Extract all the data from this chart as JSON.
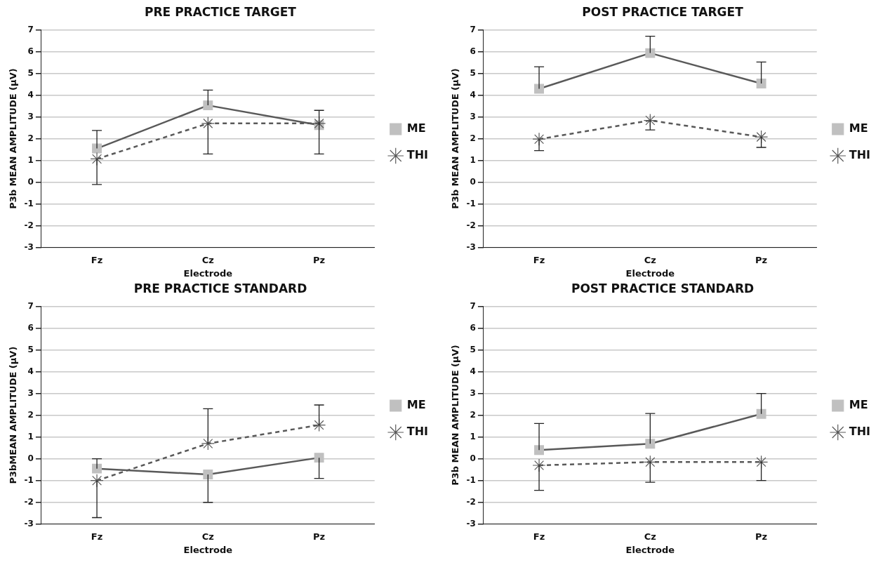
{
  "chart_data": [
    {
      "type": "line",
      "title": "PRE PRACTICE TARGET",
      "xlabel": "Electrode",
      "ylabel": "P3b MEAN AMPLITUDE (µV)",
      "categories": [
        "Fz",
        "Cz",
        "Pz"
      ],
      "ylim": [
        -3,
        7
      ],
      "yticks": [
        -3,
        -2,
        -1,
        0,
        1,
        2,
        3,
        4,
        5,
        6,
        7
      ],
      "grid": "y",
      "legend": "right",
      "series": [
        {
          "name": "ME",
          "color": "#595959",
          "marker": "square",
          "line_style": "solid",
          "values": [
            1.55,
            3.53,
            2.62
          ],
          "errors": [
            [
              1.55,
              2.38
            ],
            [
              3.53,
              4.23
            ],
            [
              2.62,
              3.3
            ]
          ]
        },
        {
          "name": "THI",
          "color": "#595959",
          "marker": "cross",
          "line_style": "dashed",
          "values": [
            1.07,
            2.7,
            2.7
          ],
          "errors": [
            [
              -0.1,
              1.07
            ],
            [
              1.3,
              2.7
            ],
            [
              1.3,
              2.7
            ]
          ]
        }
      ]
    },
    {
      "type": "line",
      "title": "POST PRACTICE TARGET",
      "xlabel": "Electrode",
      "ylabel": "P3b MEAN AMPLITUDE (µV)",
      "categories": [
        "Fz",
        "Cz",
        "Pz"
      ],
      "ylim": [
        -3,
        7
      ],
      "yticks": [
        -3,
        -2,
        -1,
        0,
        1,
        2,
        3,
        4,
        5,
        6,
        7
      ],
      "grid": "y",
      "legend": "right",
      "series": [
        {
          "name": "ME",
          "color": "#595959",
          "marker": "square",
          "line_style": "solid",
          "values": [
            4.29,
            5.93,
            4.53
          ],
          "errors": [
            [
              4.29,
              5.3
            ],
            [
              5.93,
              6.7
            ],
            [
              4.53,
              5.52
            ]
          ]
        },
        {
          "name": "THI",
          "color": "#595959",
          "marker": "cross",
          "line_style": "dashed",
          "values": [
            1.98,
            2.84,
            2.08
          ],
          "errors": [
            [
              1.45,
              1.98
            ],
            [
              2.4,
              2.84
            ],
            [
              1.6,
              2.08
            ]
          ]
        }
      ]
    },
    {
      "type": "line",
      "title": "PRE PRACTICE STANDARD",
      "xlabel": "Electrode",
      "ylabel": "P3bMEAN AMPLITUDE (µV)",
      "categories": [
        "Fz",
        "Cz",
        "Pz"
      ],
      "ylim": [
        -3,
        7
      ],
      "yticks": [
        -3,
        -2,
        -1,
        0,
        1,
        2,
        3,
        4,
        5,
        6,
        7
      ],
      "grid": "y",
      "legend": "right",
      "series": [
        {
          "name": "ME",
          "color": "#595959",
          "marker": "square",
          "line_style": "solid",
          "values": [
            -0.45,
            -0.72,
            0.05
          ],
          "errors": [
            [
              -0.45,
              0.0
            ],
            [
              -2.0,
              -0.72
            ],
            [
              -0.9,
              0.05
            ]
          ]
        },
        {
          "name": "THI",
          "color": "#595959",
          "marker": "cross",
          "line_style": "dashed",
          "values": [
            -1.0,
            0.7,
            1.55
          ],
          "errors": [
            [
              -2.7,
              -1.0
            ],
            [
              0.7,
              2.3
            ],
            [
              1.55,
              2.47
            ]
          ]
        }
      ]
    },
    {
      "type": "line",
      "title": "POST PRACTICE STANDARD",
      "xlabel": "Electrode",
      "ylabel": "P3b MEAN AMPLITUDE (µV)",
      "categories": [
        "Fz",
        "Cz",
        "Pz"
      ],
      "ylim": [
        -3,
        7
      ],
      "yticks": [
        -3,
        -2,
        -1,
        0,
        1,
        2,
        3,
        4,
        5,
        6,
        7
      ],
      "grid": "y",
      "legend": "right",
      "series": [
        {
          "name": "ME",
          "color": "#595959",
          "marker": "square",
          "line_style": "solid",
          "values": [
            0.4,
            0.69,
            2.06
          ],
          "errors": [
            [
              0.4,
              1.62
            ],
            [
              0.69,
              2.08
            ],
            [
              2.06,
              3.0
            ]
          ]
        },
        {
          "name": "THI",
          "color": "#595959",
          "marker": "cross",
          "line_style": "dashed",
          "values": [
            -0.3,
            -0.15,
            -0.15
          ],
          "errors": [
            [
              -1.45,
              -0.3
            ],
            [
              -1.08,
              -0.15
            ],
            [
              -1.0,
              -0.15
            ]
          ]
        }
      ]
    }
  ]
}
